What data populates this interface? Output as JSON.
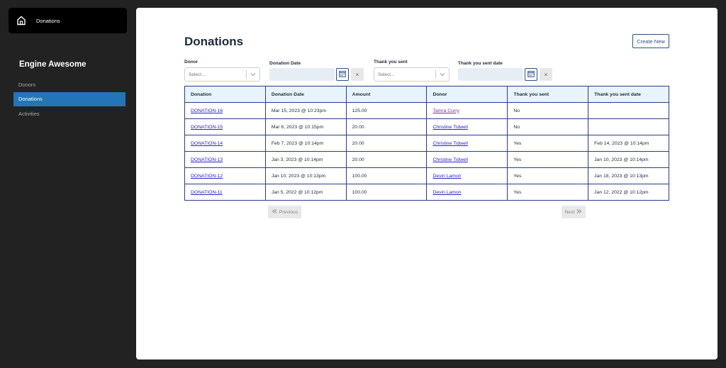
{
  "sidebar": {
    "home_label": "Donations",
    "brand": "Engine Awesome",
    "items": [
      {
        "label": "Donors",
        "active": false
      },
      {
        "label": "Donations",
        "active": true
      },
      {
        "label": "Activities",
        "active": false
      }
    ]
  },
  "main": {
    "title": "Donations",
    "create_label": "Create New",
    "filters": {
      "donor_label": "Donor",
      "donor_placeholder": "Select...",
      "date_label": "Donation Date",
      "thank_label": "Thank you sent",
      "thank_placeholder": "Select...",
      "thank_date_label": "Thank you sent date",
      "clear_glyph": "×"
    },
    "table": {
      "columns": [
        "Donation",
        "Donation Date",
        "Amount",
        "Donor",
        "Thank you sent",
        "Thank you sent date"
      ],
      "rows": [
        [
          "DONATION-16",
          "Mar 15, 2023 @ 10:23pm",
          "125.00",
          "Tamra Curry",
          "No",
          ""
        ],
        [
          "DONATION-15",
          "Mar 8, 2023 @ 10:15pm",
          "20.00",
          "Christine Tidwell",
          "No",
          ""
        ],
        [
          "DONATION-14",
          "Feb 7, 2023 @ 10:14pm",
          "20.00",
          "Christine Tidwell",
          "Yes",
          "Feb 14, 2023 @ 10:14pm"
        ],
        [
          "DONATION-13",
          "Jan 3, 2023 @ 10:14pm",
          "20.00",
          "Christine Tidwell",
          "Yes",
          "Jan 10, 2023 @ 10:14pm"
        ],
        [
          "DONATION-12",
          "Jan 10, 2023 @ 10:13pm",
          "100.00",
          "Devin Lamon",
          "Yes",
          "Jan 18, 2023 @ 10:13pm"
        ],
        [
          "DONATION-11",
          "Jan 5, 2022 @ 10:12pm",
          "100.00",
          "Devin Lamon",
          "Yes",
          "Jan 12, 2022 @ 10:12pm"
        ]
      ]
    },
    "pagination": {
      "prev_label": "Previous",
      "next_label": "Next"
    }
  },
  "colors": {
    "accent": "#2474b8",
    "header_bg": "#e7f4fb",
    "border": "#2a3a8a",
    "link": "#2a22c8"
  },
  "icons": [
    "home-icon",
    "chevron-down-icon",
    "calendar-icon",
    "close-icon",
    "double-chevron-left-icon",
    "double-chevron-right-icon"
  ]
}
